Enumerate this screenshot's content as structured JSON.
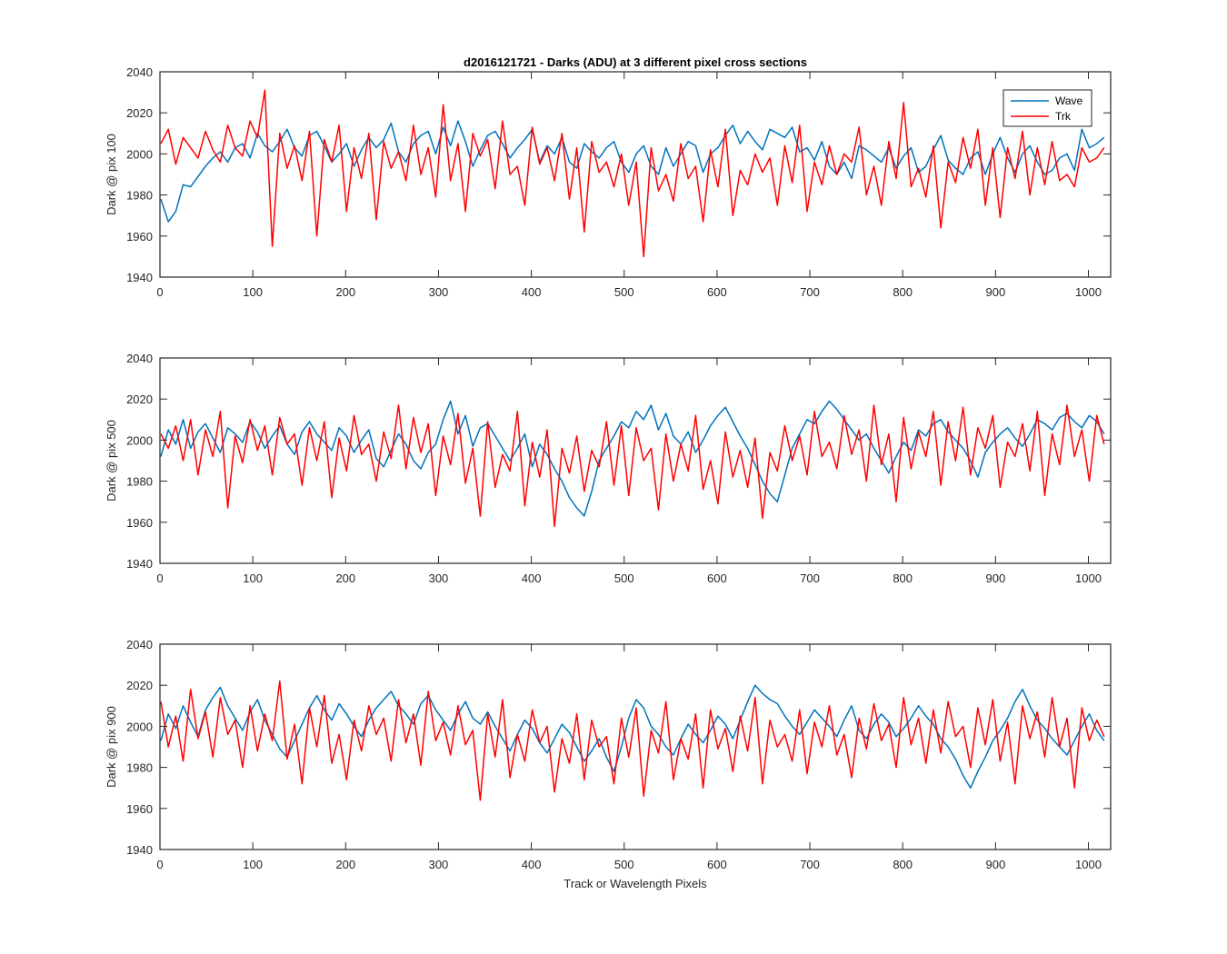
{
  "title": "d2016121721 - Darks (ADU) at 3 different pixel cross sections",
  "xlabel": "Track or Wavelength Pixels",
  "legend": {
    "position": "top-right",
    "entries": [
      "Wave",
      "Trk"
    ]
  },
  "colors": {
    "Wave": "#0072BD",
    "Trk": "#FF0000",
    "axes": "#262626"
  },
  "chart_data": [
    {
      "type": "line",
      "title": "d2016121721 - Darks (ADU) at 3 different pixel cross sections",
      "xlabel": "",
      "ylabel": "Dark @ pix 100",
      "xlim": [
        0,
        1024
      ],
      "ylim": [
        1940,
        2040
      ],
      "xticks": [
        0,
        100,
        200,
        300,
        400,
        500,
        600,
        700,
        800,
        900,
        1000
      ],
      "yticks": [
        1940,
        1960,
        1980,
        2000,
        2020,
        2040
      ],
      "grid": false,
      "legend": "top-right",
      "series": [
        {
          "name": "Wave",
          "color": "#0072BD",
          "x_start": 1,
          "x_step": 8,
          "values": [
            1978,
            1967,
            1972,
            1985,
            1984,
            1989,
            1994,
            1998,
            2001,
            1996,
            2003,
            2005,
            1998,
            2010,
            2004,
            2001,
            2006,
            2012,
            2003,
            1999,
            2009,
            2011,
            2004,
            1996,
            2000,
            2005,
            1994,
            2002,
            2008,
            2003,
            2007,
            2015,
            2001,
            1996,
            2005,
            2009,
            2011,
            2000,
            2013,
            2004,
            2016,
            2006,
            1994,
            2002,
            2009,
            2011,
            2005,
            1998,
            2003,
            2007,
            2012,
            1996,
            2004,
            2000,
            2008,
            1996,
            1993,
            2005,
            2001,
            1998,
            2003,
            2006,
            1996,
            1991,
            2000,
            2004,
            1994,
            1990,
            2003,
            1994,
            2000,
            2006,
            2004,
            1991,
            2000,
            2003,
            2009,
            2014,
            2005,
            2011,
            2006,
            2002,
            2012,
            2010,
            2008,
            2013,
            2001,
            2003,
            1997,
            2006,
            1994,
            1990,
            1996,
            1988,
            2004,
            2002,
            1999,
            1996,
            2003,
            1993,
            1999,
            2003,
            1991,
            1994,
            2002,
            2009,
            1997,
            1993,
            1990,
            1998,
            2001,
            1990,
            2000,
            2008,
            1998,
            1991,
            2000,
            2004,
            1996,
            1990,
            1992,
            1998,
            2000,
            1992,
            2012,
            2003,
            2005,
            2008
          ]
        },
        {
          "name": "Trk",
          "color": "#FF0000",
          "x_start": 1,
          "x_step": 8,
          "values": [
            2005,
            2012,
            1995,
            2008,
            2003,
            1998,
            2011,
            2002,
            1996,
            2014,
            2003,
            1999,
            2016,
            2008,
            2031,
            1955,
            2010,
            1993,
            2004,
            1987,
            2011,
            1960,
            2007,
            1996,
            2014,
            1972,
            2003,
            1988,
            2010,
            1968,
            2006,
            1993,
            2001,
            1987,
            2014,
            1990,
            2003,
            1979,
            2024,
            1987,
            2005,
            1972,
            2010,
            1999,
            2007,
            1983,
            2016,
            1990,
            1994,
            1975,
            2013,
            1995,
            2003,
            1987,
            2010,
            1978,
            2003,
            1962,
            2006,
            1991,
            1996,
            1984,
            2000,
            1975,
            1996,
            1950,
            2003,
            1982,
            1990,
            1977,
            2005,
            1988,
            1994,
            1967,
            2002,
            1984,
            2012,
            1970,
            1992,
            1985,
            2000,
            1991,
            1998,
            1975,
            2004,
            1986,
            2014,
            1972,
            1996,
            1985,
            2004,
            1990,
            2000,
            1996,
            2013,
            1980,
            1994,
            1975,
            2006,
            1988,
            2025,
            1984,
            1993,
            1979,
            2004,
            1964,
            1996,
            1986,
            2008,
            1993,
            2012,
            1975,
            2003,
            1969,
            2003,
            1988,
            2011,
            1980,
            2003,
            1985,
            2006,
            1987,
            1990,
            1984,
            2003,
            1996,
            1998,
            2003
          ]
        }
      ]
    },
    {
      "type": "line",
      "title": "",
      "xlabel": "",
      "ylabel": "Dark @ pix 500",
      "xlim": [
        0,
        1024
      ],
      "ylim": [
        1940,
        2040
      ],
      "xticks": [
        0,
        100,
        200,
        300,
        400,
        500,
        600,
        700,
        800,
        900,
        1000
      ],
      "yticks": [
        1940,
        1960,
        1980,
        2000,
        2020,
        2040
      ],
      "grid": false,
      "legend": "none",
      "series": [
        {
          "name": "Wave",
          "color": "#0072BD",
          "x_start": 1,
          "x_step": 8,
          "values": [
            1992,
            2005,
            1998,
            2010,
            1996,
            2004,
            2008,
            2001,
            1994,
            2006,
            2003,
            1999,
            2009,
            2004,
            1996,
            2002,
            2007,
            1998,
            1993,
            2004,
            2009,
            2003,
            1999,
            1995,
            2006,
            2002,
            1994,
            2000,
            2005,
            1991,
            1987,
            1995,
            2003,
            1998,
            1990,
            1986,
            1994,
            1998,
            2010,
            2019,
            2003,
            2012,
            1997,
            2006,
            2008,
            2002,
            1996,
            1990,
            1996,
            2003,
            1987,
            1998,
            1993,
            1986,
            1980,
            1972,
            1967,
            1963,
            1975,
            1990,
            1996,
            2002,
            2009,
            2006,
            2014,
            2010,
            2017,
            2005,
            2013,
            2002,
            1998,
            2004,
            1994,
            2000,
            2007,
            2012,
            2016,
            2009,
            2002,
            1996,
            1988,
            1980,
            1974,
            1970,
            1983,
            1996,
            2003,
            2010,
            2008,
            2014,
            2019,
            2015,
            2010,
            2005,
            2000,
            2003,
            1996,
            1990,
            1984,
            1992,
            1999,
            1995,
            2005,
            2002,
            2008,
            2010,
            2004,
            2000,
            1996,
            1990,
            1982,
            1994,
            1999,
            2003,
            2006,
            2001,
            1997,
            2003,
            2010,
            2008,
            2005,
            2011,
            2013,
            2009,
            2006,
            2012,
            2009,
            2003
          ]
        },
        {
          "name": "Trk",
          "color": "#FF0000",
          "x_start": 1,
          "x_step": 8,
          "values": [
            2003,
            1996,
            2007,
            1990,
            2010,
            1983,
            2005,
            1992,
            2014,
            1967,
            2002,
            1989,
            2010,
            1995,
            2007,
            1983,
            2011,
            1998,
            2003,
            1978,
            2006,
            1990,
            2009,
            1972,
            2001,
            1985,
            2012,
            1993,
            1998,
            1980,
            2004,
            1991,
            2017,
            1986,
            2011,
            1994,
            2008,
            1973,
            2002,
            1988,
            2013,
            1979,
            1996,
            1963,
            2009,
            1977,
            1993,
            1985,
            2014,
            1968,
            1999,
            1982,
            2005,
            1958,
            1996,
            1984,
            2002,
            1975,
            1995,
            1987,
            2009,
            1978,
            2007,
            1973,
            2006,
            1990,
            1996,
            1966,
            2003,
            1980,
            1998,
            1985,
            2012,
            1976,
            1990,
            1969,
            2004,
            1982,
            1995,
            1977,
            2001,
            1962,
            1994,
            1985,
            2007,
            1990,
            2002,
            1983,
            2014,
            1992,
            1999,
            1986,
            2012,
            1993,
            2005,
            1980,
            2017,
            1988,
            2003,
            1970,
            2011,
            1986,
            2004,
            1992,
            2014,
            1978,
            2009,
            1990,
            2016,
            1983,
            2006,
            1996,
            2012,
            1977,
            1999,
            1992,
            2008,
            1985,
            2014,
            1973,
            2003,
            1988,
            2017,
            1992,
            2005,
            1980,
            2012,
            1998
          ]
        }
      ]
    },
    {
      "type": "line",
      "title": "",
      "xlabel": "Track or Wavelength Pixels",
      "ylabel": "Dark @ pix 900",
      "xlim": [
        0,
        1024
      ],
      "ylim": [
        1940,
        2040
      ],
      "xticks": [
        0,
        100,
        200,
        300,
        400,
        500,
        600,
        700,
        800,
        900,
        1000
      ],
      "yticks": [
        1940,
        1960,
        1980,
        2000,
        2020,
        2040
      ],
      "grid": false,
      "legend": "none",
      "series": [
        {
          "name": "Wave",
          "color": "#0072BD",
          "x_start": 1,
          "x_step": 8,
          "values": [
            1993,
            2006,
            1999,
            2010,
            2002,
            1995,
            2008,
            2014,
            2019,
            2010,
            2004,
            1998,
            2007,
            2013,
            2003,
            1996,
            1989,
            1985,
            1993,
            2001,
            2009,
            2015,
            2008,
            2003,
            2011,
            2006,
            2000,
            1995,
            2003,
            2009,
            2013,
            2017,
            2010,
            2006,
            2001,
            2011,
            2015,
            2008,
            2003,
            1998,
            2006,
            2012,
            2004,
            2001,
            2007,
            2000,
            1994,
            1988,
            1996,
            2003,
            1999,
            1992,
            1987,
            1994,
            2001,
            1997,
            1990,
            1983,
            1988,
            1994,
            1985,
            1978,
            1990,
            2004,
            2013,
            2009,
            2000,
            1996,
            1990,
            1986,
            1994,
            2001,
            1996,
            1992,
            1998,
            2005,
            2001,
            1994,
            2003,
            2012,
            2020,
            2016,
            2013,
            2011,
            2005,
            2000,
            1996,
            2002,
            2008,
            2004,
            2000,
            1995,
            2003,
            2010,
            1998,
            1994,
            2001,
            2006,
            2002,
            1995,
            1999,
            2004,
            2010,
            2005,
            2001,
            1994,
            1990,
            1984,
            1976,
            1970,
            1978,
            1985,
            1993,
            1998,
            2004,
            2012,
            2018,
            2010,
            2003,
            1999,
            1994,
            1990,
            1986,
            1993,
            2000,
            2006,
            1998,
            1993
          ]
        },
        {
          "name": "Trk",
          "color": "#FF0000",
          "x_start": 1,
          "x_step": 8,
          "values": [
            2012,
            1990,
            2005,
            1983,
            2018,
            1994,
            2007,
            1985,
            2014,
            1996,
            2003,
            1980,
            2010,
            1988,
            2006,
            1993,
            2022,
            1984,
            2001,
            1972,
            2009,
            1990,
            2015,
            1982,
            1996,
            1974,
            2003,
            1988,
            2010,
            1996,
            2004,
            1983,
            2013,
            1992,
            2006,
            1981,
            2017,
            1993,
            2002,
            1986,
            2010,
            1991,
            1998,
            1964,
            2006,
            1985,
            2013,
            1975,
            1996,
            1983,
            2008,
            1992,
            2000,
            1968,
            1994,
            1982,
            2006,
            1974,
            2003,
            1990,
            1995,
            1972,
            2004,
            1985,
            2009,
            1966,
            1998,
            1987,
            2012,
            1974,
            1994,
            1984,
            2006,
            1970,
            2008,
            1989,
            1999,
            1978,
            2005,
            1988,
            2014,
            1972,
            2003,
            1990,
            1996,
            1983,
            2008,
            1977,
            2002,
            1990,
            2010,
            1986,
            1996,
            1975,
            2004,
            1989,
            2011,
            1993,
            2001,
            1980,
            2014,
            1991,
            2004,
            1982,
            2008,
            1987,
            2012,
            1995,
            2000,
            1980,
            2009,
            1991,
            2013,
            1983,
            2002,
            1972,
            2010,
            1994,
            2007,
            1985,
            2014,
            1990,
            2004,
            1970,
            2009,
            1993,
            2003,
            1995
          ]
        }
      ]
    }
  ]
}
